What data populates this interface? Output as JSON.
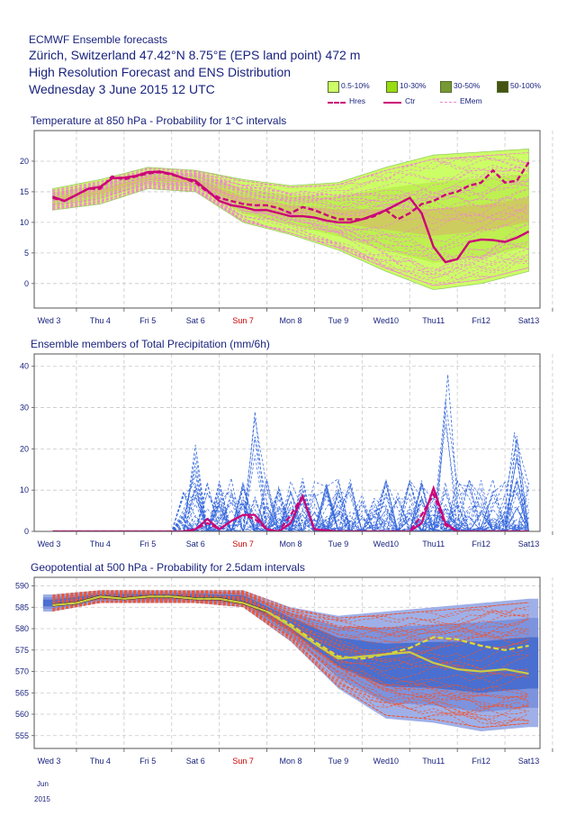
{
  "header": {
    "line1": "ECMWF Ensemble forecasts",
    "line2": "Zürich, Switzerland 47.42°N 8.75°E (EPS land point) 472 m",
    "line3": "High Resolution Forecast and ENS Distribution",
    "line4": "Wednesday  3 June 2015 12 UTC"
  },
  "legend": {
    "items": [
      {
        "label": "0.5-10%",
        "color": "#ccff66"
      },
      {
        "label": "10-30%",
        "color": "#99dd11"
      },
      {
        "label": "30-50%",
        "color": "#779933"
      },
      {
        "label": "50-100%",
        "color": "#445511"
      }
    ],
    "lines": [
      {
        "label": "Hres",
        "color": "#cc0077",
        "style": "dashed"
      },
      {
        "label": "Ctr",
        "color": "#cc0077",
        "style": "solid"
      },
      {
        "label": "EMem",
        "color": "#ee88cc",
        "style": "dashed"
      }
    ]
  },
  "footer": {
    "month": "Jun",
    "year": "2015"
  },
  "colors": {
    "text": "#1a237e",
    "sunday": "#cc0000",
    "hres": "#cc0077",
    "emem_temp": "#ee88cc",
    "emem_prec": "#3366dd",
    "geo_band_outer": "#9fb0e8",
    "geo_band_inner": "#4a6fd0",
    "geo_member": "#ee5533",
    "geo_hres": "#dddd33",
    "geo_ctr": "#cccc44"
  },
  "chart_data": [
    {
      "type": "line",
      "title": "Temperature at 850 hPa - Probability for 1°C intervals",
      "x_ticks": [
        "Wed 3",
        "Thu 4",
        "Fri 5",
        "Sat 6",
        "Sun 7",
        "Mon 8",
        "Tue 9",
        "Wed10",
        "Thu11",
        "Fri12",
        "Sat13"
      ],
      "x_range_days": [
        0,
        10.5
      ],
      "ylim": [
        -4,
        25
      ],
      "yticks": [
        0,
        5,
        10,
        15,
        20
      ],
      "grid": true,
      "series": [
        {
          "name": "Hres",
          "style": "dashed",
          "x": [
            0,
            0.25,
            0.5,
            0.75,
            1,
            1.25,
            1.5,
            1.75,
            2,
            2.25,
            2.5,
            2.75,
            3,
            3.25,
            3.5,
            3.75,
            4,
            4.25,
            4.5,
            4.75,
            5,
            5.25,
            5.5,
            5.75,
            6,
            6.25,
            6.5,
            6.75,
            7,
            7.25,
            7.5,
            7.75,
            8,
            8.25,
            8.5,
            8.75,
            9,
            9.25,
            9.5,
            9.75,
            10
          ],
          "values": [
            14,
            13.5,
            14.5,
            15.5,
            15.5,
            17.5,
            17,
            17.5,
            18,
            18.2,
            17.8,
            17.2,
            16.5,
            15,
            14,
            13.5,
            13,
            12.8,
            12.8,
            12.3,
            11.5,
            12.5,
            12,
            11.2,
            10.5,
            10.5,
            10.5,
            11,
            12,
            10.5,
            11.5,
            13,
            13.5,
            14.5,
            15,
            16,
            16.5,
            18.5,
            16.5,
            16.8,
            19.8
          ]
        },
        {
          "name": "Ctr",
          "style": "solid",
          "x": [
            0,
            0.25,
            0.5,
            0.75,
            1,
            1.25,
            1.5,
            1.75,
            2,
            2.25,
            2.5,
            2.75,
            3,
            3.25,
            3.5,
            3.75,
            4,
            4.25,
            4.5,
            4.75,
            5,
            5.25,
            5.5,
            5.75,
            6,
            6.25,
            6.5,
            6.75,
            7,
            7.25,
            7.5,
            7.75,
            8,
            8.25,
            8.5,
            8.75,
            9,
            9.25,
            9.5,
            9.75,
            10
          ],
          "values": [
            14.2,
            13.5,
            14.5,
            15.5,
            15.8,
            17.2,
            17.3,
            17.6,
            18.2,
            18.3,
            17.9,
            17.2,
            16.8,
            15.2,
            13.5,
            12.8,
            12.5,
            12.0,
            12.0,
            11.5,
            11.0,
            11.0,
            10.8,
            10.3,
            10.0,
            10.0,
            10.5,
            11.2,
            12.0,
            13.0,
            14.0,
            11.5,
            6.0,
            3.5,
            4.0,
            6.8,
            7.2,
            7.1,
            6.8,
            7.5,
            8.5
          ]
        }
      ],
      "envelope": {
        "x": [
          0,
          1,
          2,
          3,
          4,
          5,
          6,
          7,
          8,
          9,
          10
        ],
        "lower": [
          12,
          13,
          15.5,
          15,
          10,
          8,
          5.5,
          2,
          -1,
          0,
          2
        ],
        "upper": [
          15.5,
          17,
          19,
          18.5,
          17,
          16,
          16.5,
          19,
          21,
          21.5,
          22
        ]
      },
      "ensemble_members": 50
    },
    {
      "type": "line",
      "title": "Ensemble members of Total Precipitation (mm/6h)",
      "x_ticks": [
        "Wed 3",
        "Thu 4",
        "Fri 5",
        "Sat 6",
        "Sun 7",
        "Mon 8",
        "Tue 9",
        "Wed10",
        "Thu11",
        "Fri12",
        "Sat13"
      ],
      "ylim": [
        0,
        43
      ],
      "yticks": [
        0,
        10,
        20,
        30,
        40
      ],
      "grid": true,
      "series": [
        {
          "name": "Hres",
          "style": "dashed",
          "x": [
            0,
            1,
            2,
            2.75,
            3,
            3.25,
            3.5,
            3.75,
            4,
            4.25,
            4.5,
            4.75,
            5,
            5.25,
            5.5,
            6,
            7,
            7.5,
            7.75,
            8,
            8.25,
            8.5,
            9,
            10
          ],
          "values": [
            0,
            0,
            0,
            0,
            0.5,
            2,
            0.5,
            2.5,
            4,
            3,
            0.5,
            0,
            4,
            8.5,
            0.5,
            0,
            0,
            0,
            4,
            9,
            1.5,
            0,
            0,
            0
          ]
        },
        {
          "name": "Ctr",
          "style": "solid",
          "x": [
            0,
            1,
            2,
            2.75,
            3,
            3.25,
            3.5,
            3.75,
            4,
            4.25,
            4.5,
            4.75,
            5,
            5.25,
            5.5,
            6,
            7,
            7.5,
            7.75,
            8,
            8.25,
            8.5,
            9,
            10
          ],
          "values": [
            0,
            0,
            0,
            0,
            0.5,
            3,
            0.5,
            2.5,
            4,
            4,
            0.5,
            0,
            2,
            8.5,
            0.5,
            0,
            0,
            0,
            2,
            10.5,
            2,
            0,
            0,
            0
          ]
        }
      ],
      "peaks": [
        {
          "day": 3.0,
          "value": 21
        },
        {
          "day": 4.25,
          "value": 29
        },
        {
          "day": 8.3,
          "value": 38
        },
        {
          "day": 9.7,
          "value": 24
        }
      ],
      "ensemble_members": 50
    },
    {
      "type": "line",
      "title": "Geopotential at 500 hPa - Probability for 2.5dam intervals",
      "x_ticks": [
        "Wed 3",
        "Thu 4",
        "Fri 5",
        "Sat 6",
        "Sun 7",
        "Mon 8",
        "Tue 9",
        "Wed10",
        "Thu11",
        "Fri12",
        "Sat13"
      ],
      "ylim": [
        552,
        592
      ],
      "yticks": [
        555,
        560,
        565,
        570,
        575,
        580,
        585,
        590
      ],
      "grid": true,
      "series": [
        {
          "name": "Hres",
          "style": "dashed",
          "x": [
            0,
            0.5,
            1,
            1.5,
            2,
            2.5,
            3,
            3.5,
            4,
            4.5,
            5,
            5.5,
            6,
            6.5,
            7,
            7.5,
            8,
            8.5,
            9,
            9.5,
            10
          ],
          "values": [
            585.5,
            586,
            587.5,
            587,
            587.5,
            587.5,
            587,
            587,
            586,
            584,
            581,
            577,
            573.5,
            573,
            574,
            575.5,
            578,
            577.5,
            576,
            575,
            576
          ]
        },
        {
          "name": "Ctr",
          "style": "solid",
          "x": [
            0,
            0.5,
            1,
            1.5,
            2,
            2.5,
            3,
            3.5,
            4,
            4.5,
            5,
            5.5,
            6,
            6.5,
            7,
            7.5,
            8,
            8.5,
            9,
            9.5,
            10
          ],
          "values": [
            585.5,
            586,
            587.5,
            587,
            587.5,
            587.5,
            587,
            587,
            586,
            584,
            580.5,
            576.5,
            573,
            573.5,
            574,
            574.5,
            572,
            570.5,
            570,
            570.5,
            569.5
          ]
        }
      ],
      "envelope": {
        "x": [
          0,
          1,
          2,
          3,
          4,
          5,
          6,
          7,
          8,
          9,
          10
        ],
        "lower": [
          584,
          586,
          586,
          586,
          585,
          577,
          566,
          559,
          558,
          556,
          557
        ],
        "upper": [
          588,
          589,
          589,
          589,
          589,
          585,
          583,
          584,
          585,
          586,
          587
        ]
      },
      "ensemble_members": 50
    }
  ]
}
